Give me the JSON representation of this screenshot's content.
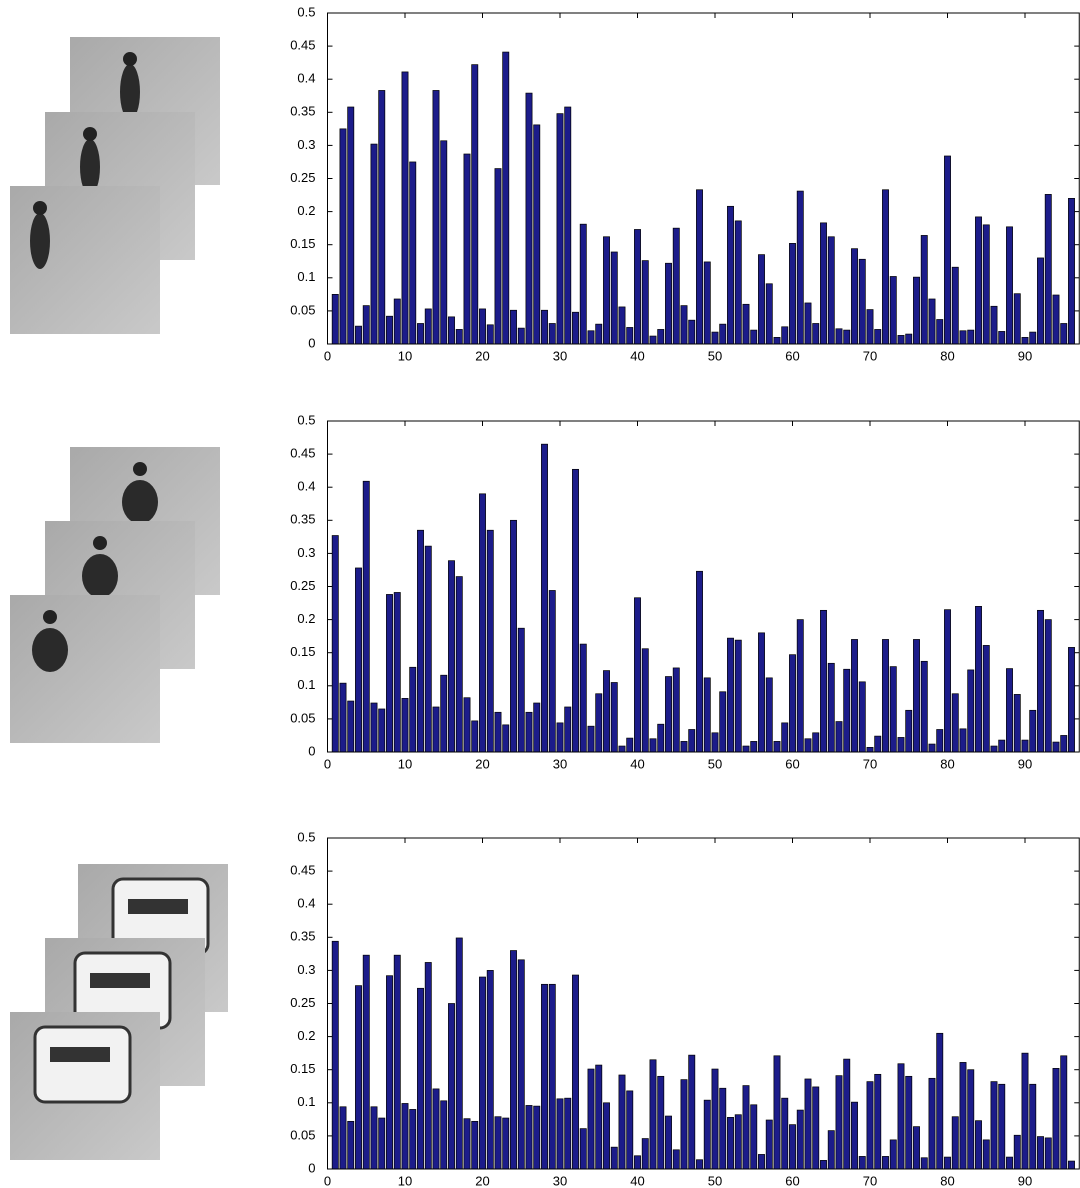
{
  "chart_data": [
    {
      "type": "bar",
      "color": "#1c1c8a",
      "x": [
        1,
        2,
        3,
        4,
        5,
        6,
        7,
        8,
        9,
        10,
        11,
        12,
        13,
        14,
        15,
        16,
        17,
        18,
        19,
        20,
        21,
        22,
        23,
        24,
        25,
        26,
        27,
        28,
        29,
        30,
        31,
        32,
        33,
        34,
        35,
        36,
        37,
        38,
        39,
        40,
        41,
        42,
        43,
        44,
        45,
        46,
        47,
        48,
        49,
        50,
        51,
        52,
        53,
        54,
        55,
        56,
        57,
        58,
        59,
        60,
        61,
        62,
        63,
        64,
        65,
        66,
        67,
        68,
        69,
        70,
        71,
        72,
        73,
        74,
        75,
        76,
        77,
        78,
        79,
        80,
        81,
        82,
        83,
        84,
        85,
        86,
        87,
        88,
        89,
        90,
        91,
        92,
        93,
        94,
        95,
        96
      ],
      "values": [
        0.075,
        0.325,
        0.358,
        0.027,
        0.058,
        0.302,
        0.383,
        0.042,
        0.068,
        0.411,
        0.275,
        0.031,
        0.053,
        0.383,
        0.307,
        0.041,
        0.022,
        0.287,
        0.422,
        0.053,
        0.029,
        0.265,
        0.441,
        0.051,
        0.024,
        0.379,
        0.331,
        0.051,
        0.031,
        0.348,
        0.358,
        0.048,
        0.181,
        0.02,
        0.03,
        0.162,
        0.139,
        0.056,
        0.025,
        0.173,
        0.126,
        0.012,
        0.022,
        0.122,
        0.175,
        0.058,
        0.036,
        0.233,
        0.124,
        0.018,
        0.03,
        0.208,
        0.186,
        0.06,
        0.021,
        0.135,
        0.091,
        0.01,
        0.026,
        0.152,
        0.231,
        0.062,
        0.031,
        0.183,
        0.162,
        0.023,
        0.021,
        0.144,
        0.128,
        0.052,
        0.022,
        0.233,
        0.102,
        0.013,
        0.015,
        0.101,
        0.164,
        0.068,
        0.037,
        0.284,
        0.116,
        0.02,
        0.021,
        0.192,
        0.18,
        0.057,
        0.019,
        0.177,
        0.076,
        0.01,
        0.018,
        0.13,
        0.226,
        0.074,
        0.031,
        0.22
      ],
      "xlim": [
        0,
        97
      ],
      "ylim": [
        0,
        0.5
      ],
      "xticks": [
        0,
        10,
        20,
        30,
        40,
        50,
        60,
        70,
        80,
        90
      ],
      "yticks": [
        0,
        0.05,
        0.1,
        0.15,
        0.2,
        0.25,
        0.3,
        0.35,
        0.4,
        0.45,
        0.5
      ]
    },
    {
      "type": "bar",
      "color": "#1c1c8a",
      "x": [
        1,
        2,
        3,
        4,
        5,
        6,
        7,
        8,
        9,
        10,
        11,
        12,
        13,
        14,
        15,
        16,
        17,
        18,
        19,
        20,
        21,
        22,
        23,
        24,
        25,
        26,
        27,
        28,
        29,
        30,
        31,
        32,
        33,
        34,
        35,
        36,
        37,
        38,
        39,
        40,
        41,
        42,
        43,
        44,
        45,
        46,
        47,
        48,
        49,
        50,
        51,
        52,
        53,
        54,
        55,
        56,
        57,
        58,
        59,
        60,
        61,
        62,
        63,
        64,
        65,
        66,
        67,
        68,
        69,
        70,
        71,
        72,
        73,
        74,
        75,
        76,
        77,
        78,
        79,
        80,
        81,
        82,
        83,
        84,
        85,
        86,
        87,
        88,
        89,
        90,
        91,
        92,
        93,
        94,
        95,
        96
      ],
      "values": [
        0.327,
        0.104,
        0.077,
        0.278,
        0.409,
        0.074,
        0.065,
        0.238,
        0.241,
        0.081,
        0.128,
        0.335,
        0.311,
        0.068,
        0.116,
        0.289,
        0.265,
        0.082,
        0.047,
        0.39,
        0.335,
        0.06,
        0.041,
        0.35,
        0.187,
        0.06,
        0.074,
        0.465,
        0.244,
        0.044,
        0.068,
        0.427,
        0.163,
        0.039,
        0.088,
        0.123,
        0.105,
        0.009,
        0.021,
        0.233,
        0.156,
        0.02,
        0.042,
        0.114,
        0.127,
        0.016,
        0.034,
        0.273,
        0.112,
        0.029,
        0.091,
        0.172,
        0.169,
        0.009,
        0.016,
        0.18,
        0.112,
        0.016,
        0.044,
        0.147,
        0.2,
        0.02,
        0.029,
        0.214,
        0.134,
        0.046,
        0.125,
        0.17,
        0.106,
        0.007,
        0.024,
        0.17,
        0.129,
        0.022,
        0.063,
        0.17,
        0.137,
        0.012,
        0.034,
        0.215,
        0.088,
        0.035,
        0.124,
        0.22,
        0.161,
        0.009,
        0.018,
        0.126,
        0.087,
        0.018,
        0.063,
        0.214,
        0.2,
        0.015,
        0.025,
        0.158
      ],
      "xlim": [
        0,
        97
      ],
      "ylim": [
        0,
        0.5
      ],
      "xticks": [
        0,
        10,
        20,
        30,
        40,
        50,
        60,
        70,
        80,
        90
      ],
      "yticks": [
        0,
        0.05,
        0.1,
        0.15,
        0.2,
        0.25,
        0.3,
        0.35,
        0.4,
        0.45,
        0.5
      ]
    },
    {
      "type": "bar",
      "color": "#1c1c8a",
      "x": [
        1,
        2,
        3,
        4,
        5,
        6,
        7,
        8,
        9,
        10,
        11,
        12,
        13,
        14,
        15,
        16,
        17,
        18,
        19,
        20,
        21,
        22,
        23,
        24,
        25,
        26,
        27,
        28,
        29,
        30,
        31,
        32,
        33,
        34,
        35,
        36,
        37,
        38,
        39,
        40,
        41,
        42,
        43,
        44,
        45,
        46,
        47,
        48,
        49,
        50,
        51,
        52,
        53,
        54,
        55,
        56,
        57,
        58,
        59,
        60,
        61,
        62,
        63,
        64,
        65,
        66,
        67,
        68,
        69,
        70,
        71,
        72,
        73,
        74,
        75,
        76,
        77,
        78,
        79,
        80,
        81,
        82,
        83,
        84,
        85,
        86,
        87,
        88,
        89,
        90,
        91,
        92,
        93,
        94,
        95,
        96
      ],
      "values": [
        0.344,
        0.094,
        0.072,
        0.277,
        0.323,
        0.094,
        0.077,
        0.292,
        0.323,
        0.099,
        0.09,
        0.273,
        0.312,
        0.121,
        0.103,
        0.25,
        0.349,
        0.076,
        0.072,
        0.29,
        0.3,
        0.079,
        0.077,
        0.33,
        0.316,
        0.096,
        0.095,
        0.279,
        0.279,
        0.106,
        0.107,
        0.293,
        0.061,
        0.151,
        0.157,
        0.1,
        0.033,
        0.142,
        0.118,
        0.02,
        0.046,
        0.165,
        0.14,
        0.08,
        0.029,
        0.135,
        0.172,
        0.014,
        0.104,
        0.151,
        0.122,
        0.078,
        0.082,
        0.126,
        0.097,
        0.022,
        0.074,
        0.171,
        0.107,
        0.067,
        0.089,
        0.136,
        0.124,
        0.013,
        0.058,
        0.141,
        0.166,
        0.101,
        0.019,
        0.132,
        0.143,
        0.019,
        0.044,
        0.159,
        0.14,
        0.064,
        0.017,
        0.137,
        0.205,
        0.018,
        0.079,
        0.161,
        0.15,
        0.073,
        0.044,
        0.132,
        0.128,
        0.018,
        0.051,
        0.175,
        0.128,
        0.049,
        0.047,
        0.152,
        0.171,
        0.012
      ],
      "xlim": [
        0,
        97
      ],
      "ylim": [
        0,
        0.5
      ],
      "xticks": [
        0,
        10,
        20,
        30,
        40,
        50,
        60,
        70,
        80,
        90
      ],
      "yticks": [
        0,
        0.05,
        0.1,
        0.15,
        0.2,
        0.25,
        0.3,
        0.35,
        0.4,
        0.45,
        0.5
      ]
    }
  ]
}
